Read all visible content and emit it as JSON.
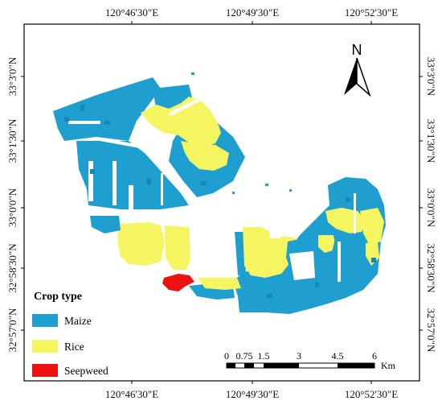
{
  "map": {
    "top_ticks": [
      "120°46'30\"E",
      "120°49'30\"E",
      "120°52'30\"E"
    ],
    "bottom_ticks": [
      "120°46'30\"E",
      "120°49'30\"E",
      "120°52'30\"E"
    ],
    "left_ticks": [
      "33°3'0\"N",
      "33°1'30\"N",
      "33°0'0\"N",
      "32°58'30\"N",
      "32°57'0\"N"
    ],
    "right_ticks": [
      "33°3'0\"N",
      "33°1'30\"N",
      "33°0'0\"N",
      "32°58'30\"N",
      "32°57'0\"N"
    ],
    "north_label": "N"
  },
  "legend": {
    "title": "Crop type",
    "items": [
      {
        "label": "Maize",
        "color": "#1f9fd0"
      },
      {
        "label": "Rice",
        "color": "#f5f562"
      },
      {
        "label": "Seepweed",
        "color": "#ee1111"
      }
    ]
  },
  "scale_bar": {
    "labels": [
      "0",
      "0.75",
      "1.5",
      "3",
      "4.5",
      "6"
    ],
    "unit": "Km"
  },
  "colors": {
    "maize": "#1f9fd0",
    "rice": "#f5f562",
    "seepweed": "#ee1111",
    "frame": "#000000"
  }
}
